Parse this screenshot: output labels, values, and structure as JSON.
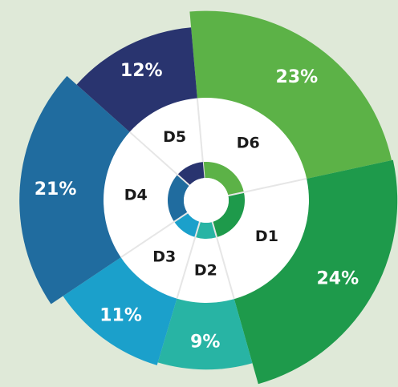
{
  "chart_data": {
    "type": "pie",
    "categories": [
      "D6",
      "D1",
      "D2",
      "D3",
      "D4",
      "D5"
    ],
    "values": [
      23,
      24,
      9,
      11,
      21,
      12
    ],
    "value_labels": [
      "23%",
      "24%",
      "9%",
      "11%",
      "21%",
      "12%"
    ],
    "colors": [
      "#5cb247",
      "#1e9a4b",
      "#28b4a4",
      "#1ba0cb",
      "#206c9f",
      "#29346f"
    ]
  }
}
